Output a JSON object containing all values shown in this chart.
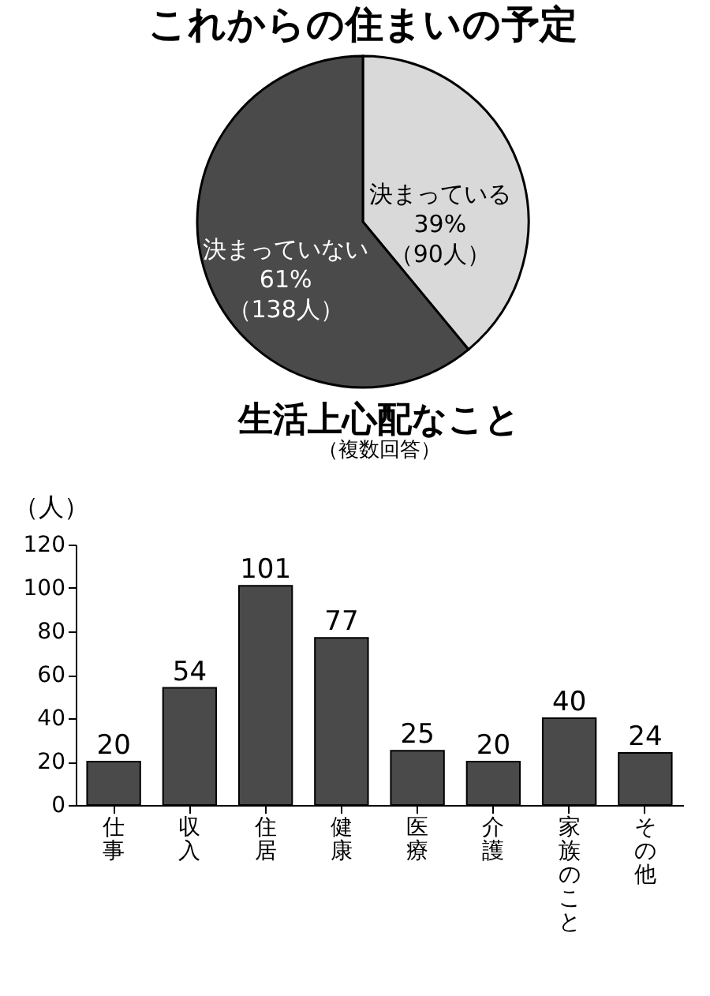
{
  "chart_data": [
    {
      "type": "pie",
      "title": "これからの住まいの予定",
      "categories": [
        "決まっている",
        "決まっていない"
      ],
      "values": [
        39,
        61
      ],
      "colors": [
        "#d9d9d9",
        "#4a4a4a"
      ],
      "value_labels": [
        "39%\n（90人）",
        "61%\n（138人）"
      ]
    },
    {
      "type": "bar",
      "title": "生活上心配なこと",
      "subtitle": "（複数回答）",
      "ylabel": "（人）",
      "categories": [
        "仕事",
        "収入",
        "住居",
        "健康",
        "医療",
        "介護",
        "家族のこと",
        "その他"
      ],
      "values": [
        20,
        54,
        101,
        77,
        25,
        20,
        40,
        24
      ],
      "color": "#4a4a4a",
      "ylim": [
        0,
        120
      ],
      "yticks": [
        0,
        20,
        40,
        60,
        80,
        100,
        120
      ],
      "data_labels": true,
      "grid": false
    }
  ]
}
